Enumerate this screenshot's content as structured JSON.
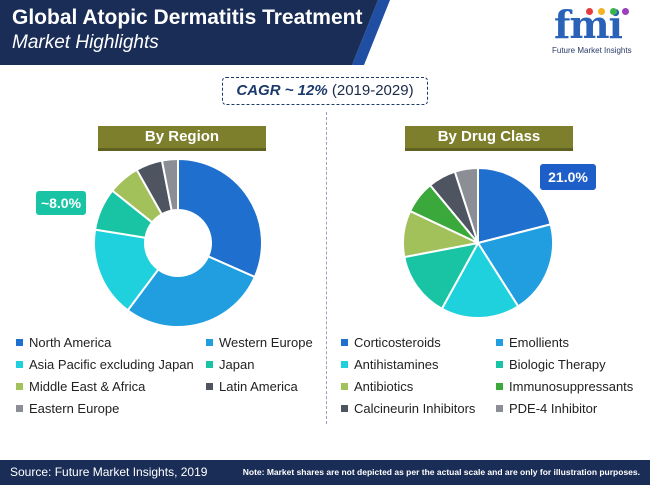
{
  "header": {
    "title_line1": "Global Atopic Dermatitis Treatment",
    "title_line2": "Market Highlights",
    "colors": {
      "banner": "#1a2d57",
      "accent": "#1f4ea3"
    }
  },
  "logo": {
    "mark": "fmi",
    "tagline": "Future Market Insights"
  },
  "cagr": {
    "label": "CAGR ~ 12%",
    "period": "(2019-2029)"
  },
  "chart_data": [
    {
      "type": "pie",
      "variant": "donut",
      "title": "By Region",
      "callout": "~8.0%",
      "categories": [
        "North America",
        "Western Europe",
        "Asia Pacific excluding Japan",
        "Japan",
        "Middle East & Africa",
        "Latin America",
        "Eastern Europe"
      ],
      "values": [
        31,
        28,
        17,
        8,
        6,
        5,
        3
      ],
      "colors": [
        "#1f6fcf",
        "#219ee0",
        "#1fd1dd",
        "#19c4a4",
        "#a3c15a",
        "#4f5560",
        "#8b8f95"
      ]
    },
    {
      "type": "pie",
      "title": "By Drug Class",
      "callout": "21.0%",
      "categories": [
        "Corticosteroids",
        "Emollients",
        "Antihistamines",
        "Biologic Therapy",
        "Antibiotics",
        "Immunosuppressants",
        "Calcineurin Inhibitors",
        "PDE-4 Inhibitor"
      ],
      "values": [
        21,
        20,
        17,
        14,
        10,
        7,
        6,
        5
      ],
      "colors": [
        "#1f6fcf",
        "#219ee0",
        "#1fd1dd",
        "#19c4a4",
        "#a3c15a",
        "#3aa83a",
        "#4f5560",
        "#8b8f95"
      ]
    }
  ],
  "footer": {
    "source": "Source: Future Market Insights, 2019",
    "note": "Note: Market shares are not depicted as per the actual scale and are only for illustration purposes."
  }
}
